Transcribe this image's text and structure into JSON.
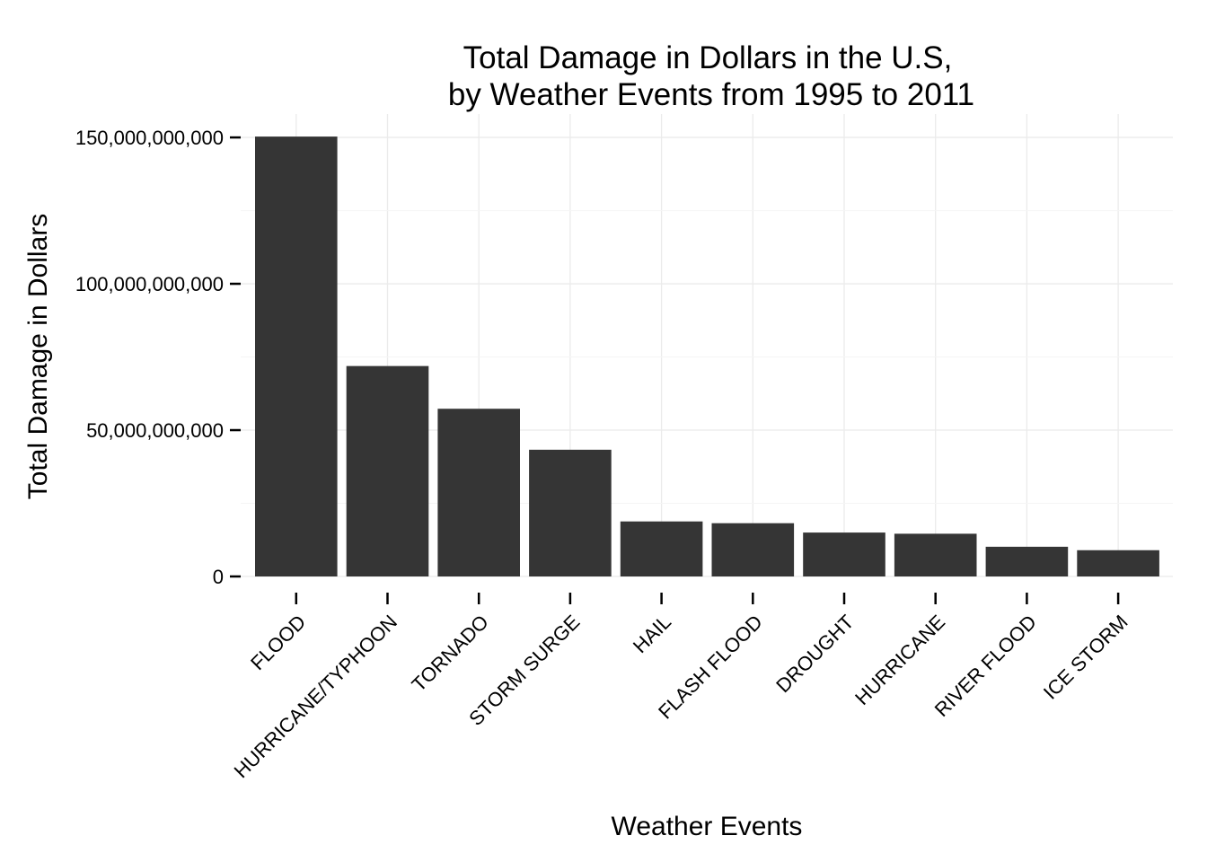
{
  "chart_data": {
    "type": "bar",
    "title": [
      "Total Damage in Dollars in the U.S,",
      "by Weather Events from 1995 to 2011"
    ],
    "xlabel": "Weather Events",
    "ylabel": "Total Damage in Dollars",
    "categories": [
      "FLOOD",
      "HURRICANE/TYPHOON",
      "TORNADO",
      "STORM SURGE",
      "HAIL",
      "FLASH FLOOD",
      "DROUGHT",
      "HURRICANE",
      "RIVER FLOOD",
      "ICE STORM"
    ],
    "values": [
      150300000000,
      71900000000,
      57300000000,
      43300000000,
      18800000000,
      18200000000,
      15000000000,
      14600000000,
      10150000000,
      8970000000
    ],
    "ylim": [
      0,
      158000000000
    ],
    "yticks": [
      0,
      50000000000,
      100000000000,
      150000000000
    ],
    "ytick_labels": [
      "0",
      "50,000,000,000",
      "100,000,000,000",
      "150,000,000,000"
    ],
    "bar_color": "#353535",
    "grid": true,
    "legend": "none"
  }
}
